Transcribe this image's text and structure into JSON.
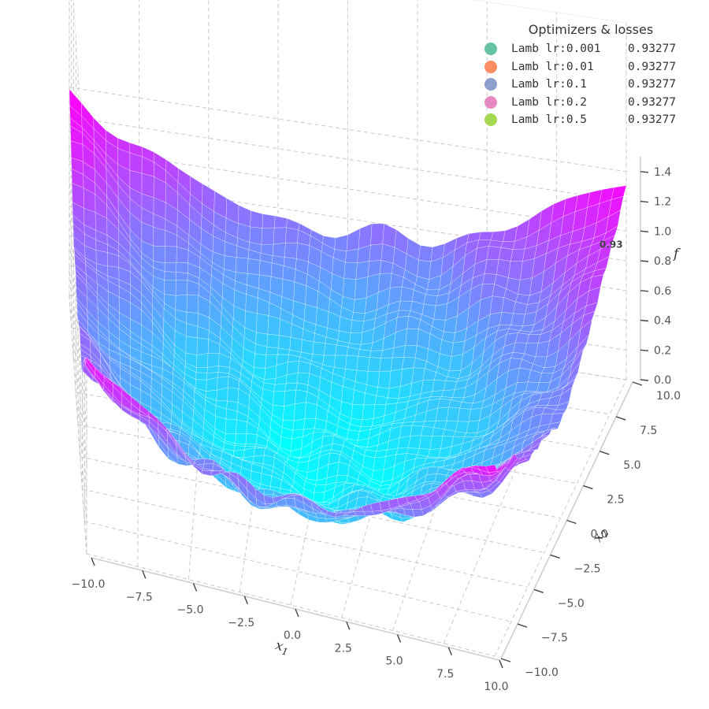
{
  "chart_data": {
    "type": "surface3d",
    "title": "",
    "xlabel": "x1",
    "ylabel": "x2",
    "zlabel": "f",
    "xlim": [
      -10,
      10
    ],
    "ylim": [
      -10,
      10
    ],
    "zlim": [
      0,
      1.5
    ],
    "x_ticks": [
      "−10.0",
      "−7.5",
      "−5.0",
      "−2.5",
      "0.0",
      "2.5",
      "5.0",
      "7.5",
      "10.0"
    ],
    "y_ticks": [
      "−10.0",
      "−7.5",
      "−5.0",
      "−2.5",
      "0.0",
      "2.5",
      "5.0",
      "7.5",
      "10.0"
    ],
    "z_ticks": [
      "0.0",
      "0.2",
      "0.4",
      "0.6",
      "0.8",
      "1.0",
      "1.2",
      "1.4"
    ],
    "surface": {
      "description_formula": "approximately (x1^2 + x2^2)/100 * 0.7 with small noise",
      "colormap": [
        "#00ffff",
        "#ff00ff"
      ]
    },
    "annotation": "0.93",
    "legend": {
      "title": "Optimizers & losses",
      "placement": "top-right",
      "entries": [
        {
          "name": "Lamb lr:0.001",
          "loss": "0.93277",
          "color": "#66c2a5"
        },
        {
          "name": "Lamb lr:0.01",
          "loss": "0.93277",
          "color": "#fc8d62"
        },
        {
          "name": "Lamb lr:0.1",
          "loss": "0.93277",
          "color": "#8da0cb"
        },
        {
          "name": "Lamb lr:0.2",
          "loss": "0.93277",
          "color": "#e78ac3"
        },
        {
          "name": "Lamb lr:0.5",
          "loss": "0.93277",
          "color": "#a6d854"
        }
      ]
    }
  }
}
